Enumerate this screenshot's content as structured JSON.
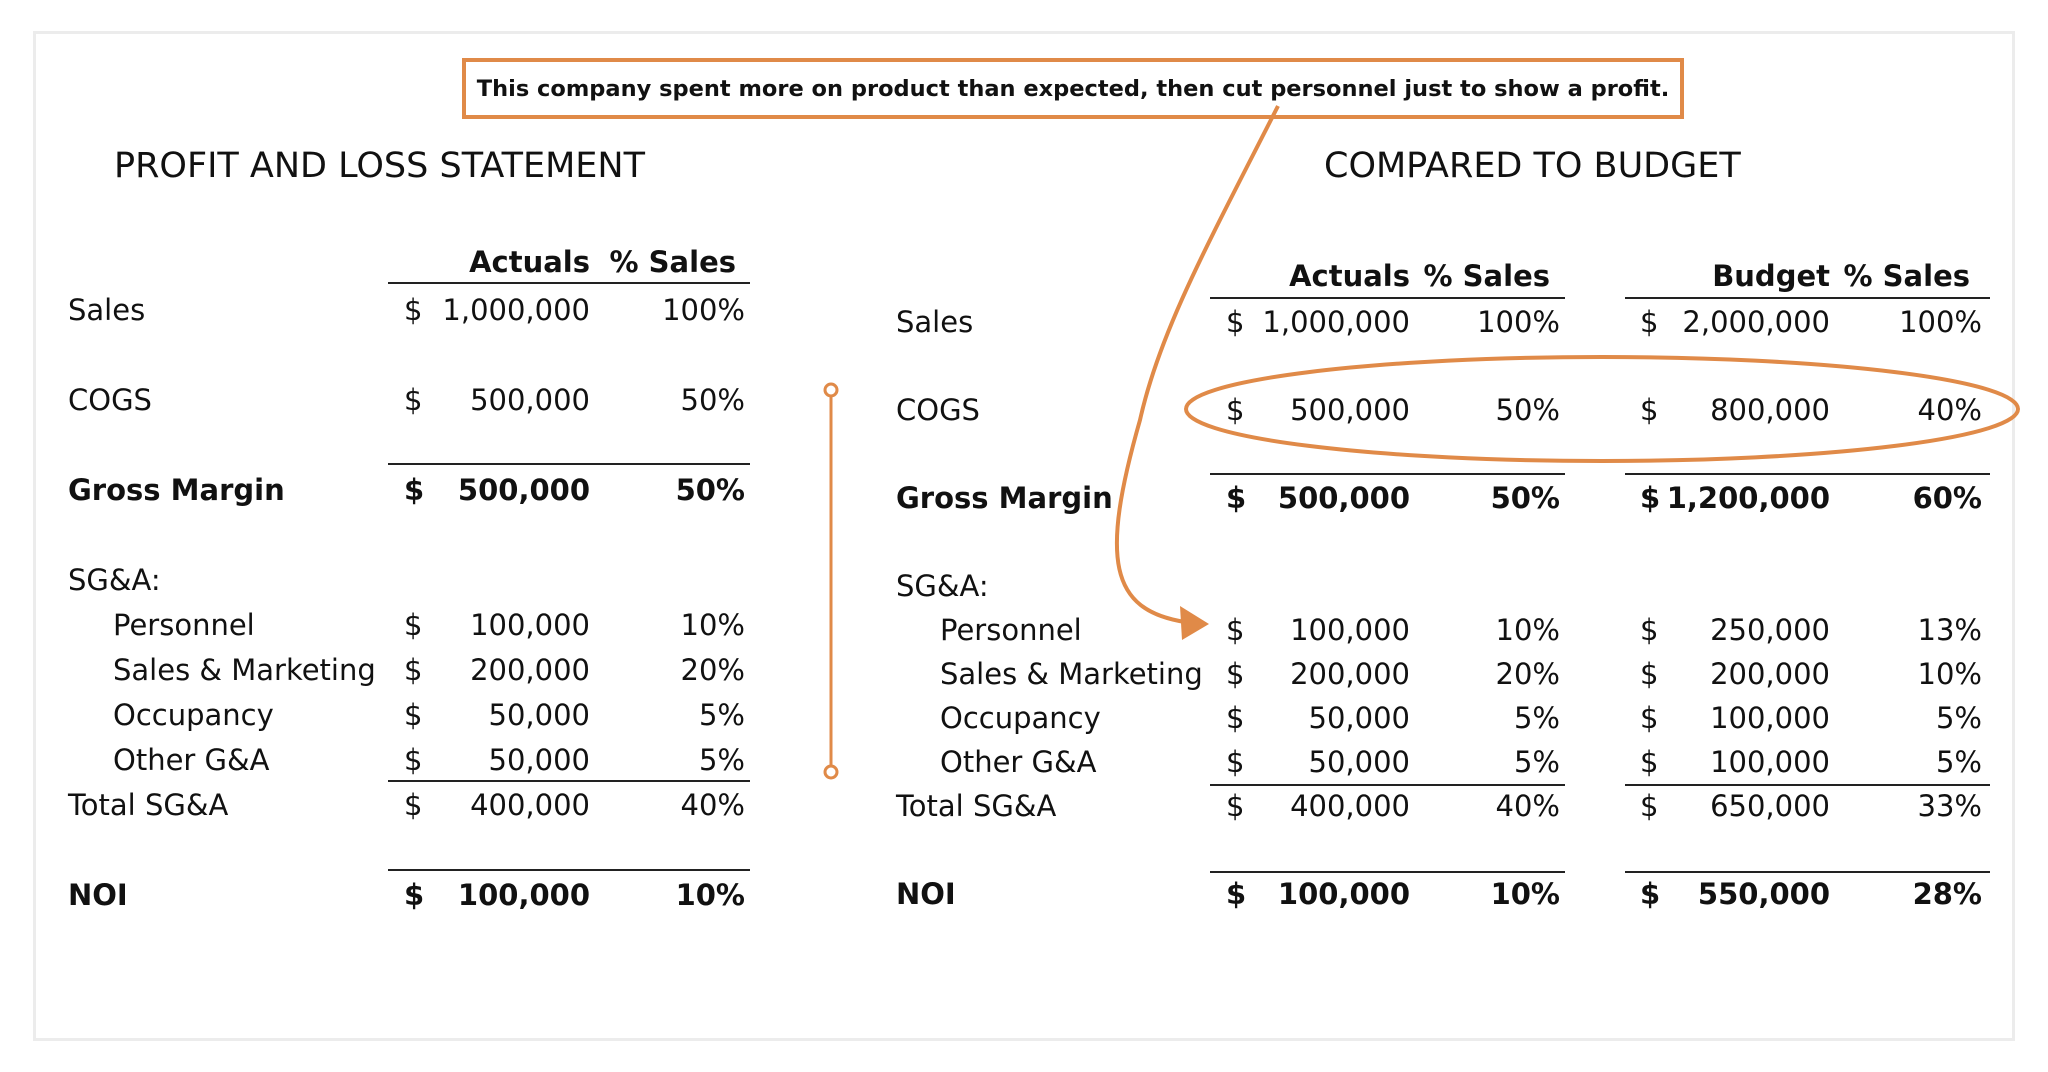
{
  "callout_text": "This company spent more on product than expected, then cut personnel just to show a profit.",
  "headings": {
    "left": "PROFIT AND LOSS STATEMENT",
    "right": "COMPARED TO BUDGET"
  },
  "columns": {
    "actuals": "Actuals",
    "pct_sales": "% Sales",
    "budget": "Budget"
  },
  "currency": "$",
  "rows": [
    {
      "label": "Sales",
      "bold": false,
      "indent": false,
      "actual": "1,000,000",
      "actual_pct": "100%",
      "budget": "2,000,000",
      "budget_pct": "100%"
    },
    {
      "label": "COGS",
      "bold": false,
      "indent": false,
      "actual": "500,000",
      "actual_pct": "50%",
      "budget": "800,000",
      "budget_pct": "40%"
    },
    {
      "label": "Gross Margin",
      "bold": true,
      "indent": false,
      "actual": "500,000",
      "actual_pct": "50%",
      "budget": "1,200,000",
      "budget_pct": "60%"
    },
    {
      "label": "SG&A:",
      "bold": false,
      "indent": false,
      "actual": "",
      "actual_pct": "",
      "budget": "",
      "budget_pct": ""
    },
    {
      "label": "Personnel",
      "bold": false,
      "indent": true,
      "actual": "100,000",
      "actual_pct": "10%",
      "budget": "250,000",
      "budget_pct": "13%"
    },
    {
      "label": "Sales & Marketing",
      "bold": false,
      "indent": true,
      "actual": "200,000",
      "actual_pct": "20%",
      "budget": "200,000",
      "budget_pct": "10%"
    },
    {
      "label": "Occupancy",
      "bold": false,
      "indent": true,
      "actual": "50,000",
      "actual_pct": "5%",
      "budget": "100,000",
      "budget_pct": "5%"
    },
    {
      "label": "Other G&A",
      "bold": false,
      "indent": true,
      "actual": "50,000",
      "actual_pct": "5%",
      "budget": "100,000",
      "budget_pct": "5%"
    },
    {
      "label": "Total SG&A",
      "bold": false,
      "indent": false,
      "actual": "400,000",
      "actual_pct": "40%",
      "budget": "650,000",
      "budget_pct": "33%"
    },
    {
      "label": "NOI",
      "bold": true,
      "indent": false,
      "actual": "100,000",
      "actual_pct": "10%",
      "budget": "550,000",
      "budget_pct": "28%"
    }
  ],
  "annotation_color": "#e08a48"
}
